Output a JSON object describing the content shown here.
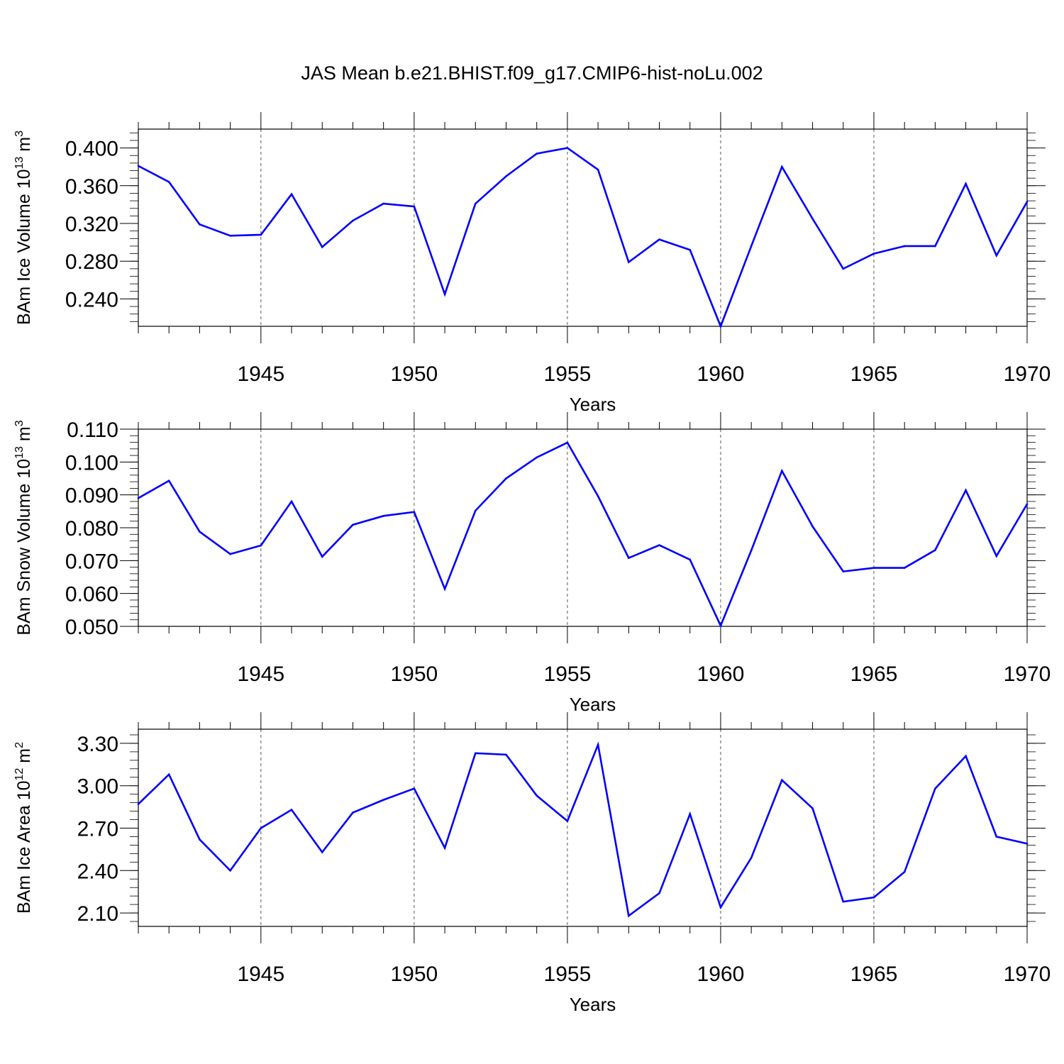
{
  "title": "JAS Mean b.e21.BHIST.f09_g17.CMIP6-hist-noLu.002",
  "colors": {
    "line": "#0000ff",
    "axis": "#000000",
    "grid": "#555555"
  },
  "chart_data": [
    {
      "type": "line",
      "name": "ice-volume",
      "ylabel_main": "BAm Ice Volume 10",
      "ylabel_exp": "13",
      "ylabel_unit": " m",
      "ylabel_unit_exp": "3",
      "xlabel": "Years",
      "xlim": [
        1941,
        1970
      ],
      "ylim": [
        0.211,
        0.42
      ],
      "yticks": [
        0.24,
        0.28,
        0.32,
        0.36,
        0.4
      ],
      "ytick_labels": [
        "0.240",
        "0.280",
        "0.320",
        "0.360",
        "0.400"
      ],
      "yminor_step": 0.008,
      "xticks": [
        1945,
        1950,
        1955,
        1960,
        1965,
        1970
      ],
      "xtick_labels": [
        "1945",
        "1950",
        "1955",
        "1960",
        "1965",
        "1970"
      ],
      "x": [
        1941,
        1942,
        1943,
        1944,
        1945,
        1946,
        1947,
        1948,
        1949,
        1950,
        1951,
        1952,
        1953,
        1954,
        1955,
        1956,
        1957,
        1958,
        1959,
        1960,
        1961,
        1962,
        1963,
        1964,
        1965,
        1966,
        1967,
        1968,
        1969,
        1970
      ],
      "series": [
        {
          "name": "Ice Volume",
          "values": [
            0.381,
            0.364,
            0.319,
            0.307,
            0.308,
            0.351,
            0.295,
            0.323,
            0.341,
            0.338,
            0.245,
            0.341,
            0.37,
            0.394,
            0.4,
            0.377,
            0.279,
            0.303,
            0.292,
            0.211,
            0.296,
            0.38,
            0.325,
            0.272,
            0.288,
            0.296,
            0.296,
            0.362,
            0.286,
            0.343
          ]
        }
      ]
    },
    {
      "type": "line",
      "name": "snow-volume",
      "ylabel_main": "BAm Snow Volume 10",
      "ylabel_exp": "13",
      "ylabel_unit": " m",
      "ylabel_unit_exp": "3",
      "xlabel": "Years",
      "xlim": [
        1941,
        1970
      ],
      "ylim": [
        0.05,
        0.11
      ],
      "yticks": [
        0.05,
        0.06,
        0.07,
        0.08,
        0.09,
        0.1,
        0.11
      ],
      "ytick_labels": [
        "0.050",
        "0.060",
        "0.070",
        "0.080",
        "0.090",
        "0.100",
        "0.110"
      ],
      "yminor_step": 0.002,
      "xticks": [
        1945,
        1950,
        1955,
        1960,
        1965,
        1970
      ],
      "xtick_labels": [
        "1945",
        "1950",
        "1955",
        "1960",
        "1965",
        "1970"
      ],
      "x": [
        1941,
        1942,
        1943,
        1944,
        1945,
        1946,
        1947,
        1948,
        1949,
        1950,
        1951,
        1952,
        1953,
        1954,
        1955,
        1956,
        1957,
        1958,
        1959,
        1960,
        1961,
        1962,
        1963,
        1964,
        1965,
        1966,
        1967,
        1968,
        1969,
        1970
      ],
      "series": [
        {
          "name": "Snow Volume",
          "values": [
            0.089,
            0.0943,
            0.0788,
            0.072,
            0.0746,
            0.088,
            0.0712,
            0.0809,
            0.0836,
            0.0848,
            0.0614,
            0.0852,
            0.095,
            0.1014,
            0.1059,
            0.0896,
            0.0708,
            0.0747,
            0.0703,
            0.0502,
            0.0731,
            0.0973,
            0.0804,
            0.0667,
            0.0678,
            0.0678,
            0.0732,
            0.0914,
            0.0714,
            0.0872
          ]
        }
      ]
    },
    {
      "type": "line",
      "name": "ice-area",
      "ylabel_main": "BAm Ice Area 10",
      "ylabel_exp": "12",
      "ylabel_unit": " m",
      "ylabel_unit_exp": "2",
      "xlabel": "Years",
      "xlim": [
        1941,
        1970
      ],
      "ylim": [
        2.005,
        3.4
      ],
      "yticks": [
        2.1,
        2.4,
        2.7,
        3.0,
        3.3
      ],
      "ytick_labels": [
        "2.10",
        "2.40",
        "2.70",
        "3.00",
        "3.30"
      ],
      "yminor_step": 0.06,
      "xticks": [
        1945,
        1950,
        1955,
        1960,
        1965,
        1970
      ],
      "xtick_labels": [
        "1945",
        "1950",
        "1955",
        "1960",
        "1965",
        "1970"
      ],
      "x": [
        1941,
        1942,
        1943,
        1944,
        1945,
        1946,
        1947,
        1948,
        1949,
        1950,
        1951,
        1952,
        1953,
        1954,
        1955,
        1956,
        1957,
        1958,
        1959,
        1960,
        1961,
        1962,
        1963,
        1964,
        1965,
        1966,
        1967,
        1968,
        1969,
        1970
      ],
      "series": [
        {
          "name": "Ice Area",
          "values": [
            2.87,
            3.08,
            2.62,
            2.4,
            2.7,
            2.83,
            2.53,
            2.81,
            2.9,
            2.98,
            2.56,
            3.23,
            3.22,
            2.93,
            2.75,
            3.29,
            2.08,
            2.24,
            2.8,
            2.14,
            2.49,
            3.04,
            2.84,
            2.18,
            2.21,
            2.39,
            2.98,
            3.21,
            2.64,
            2.59
          ]
        }
      ]
    }
  ]
}
